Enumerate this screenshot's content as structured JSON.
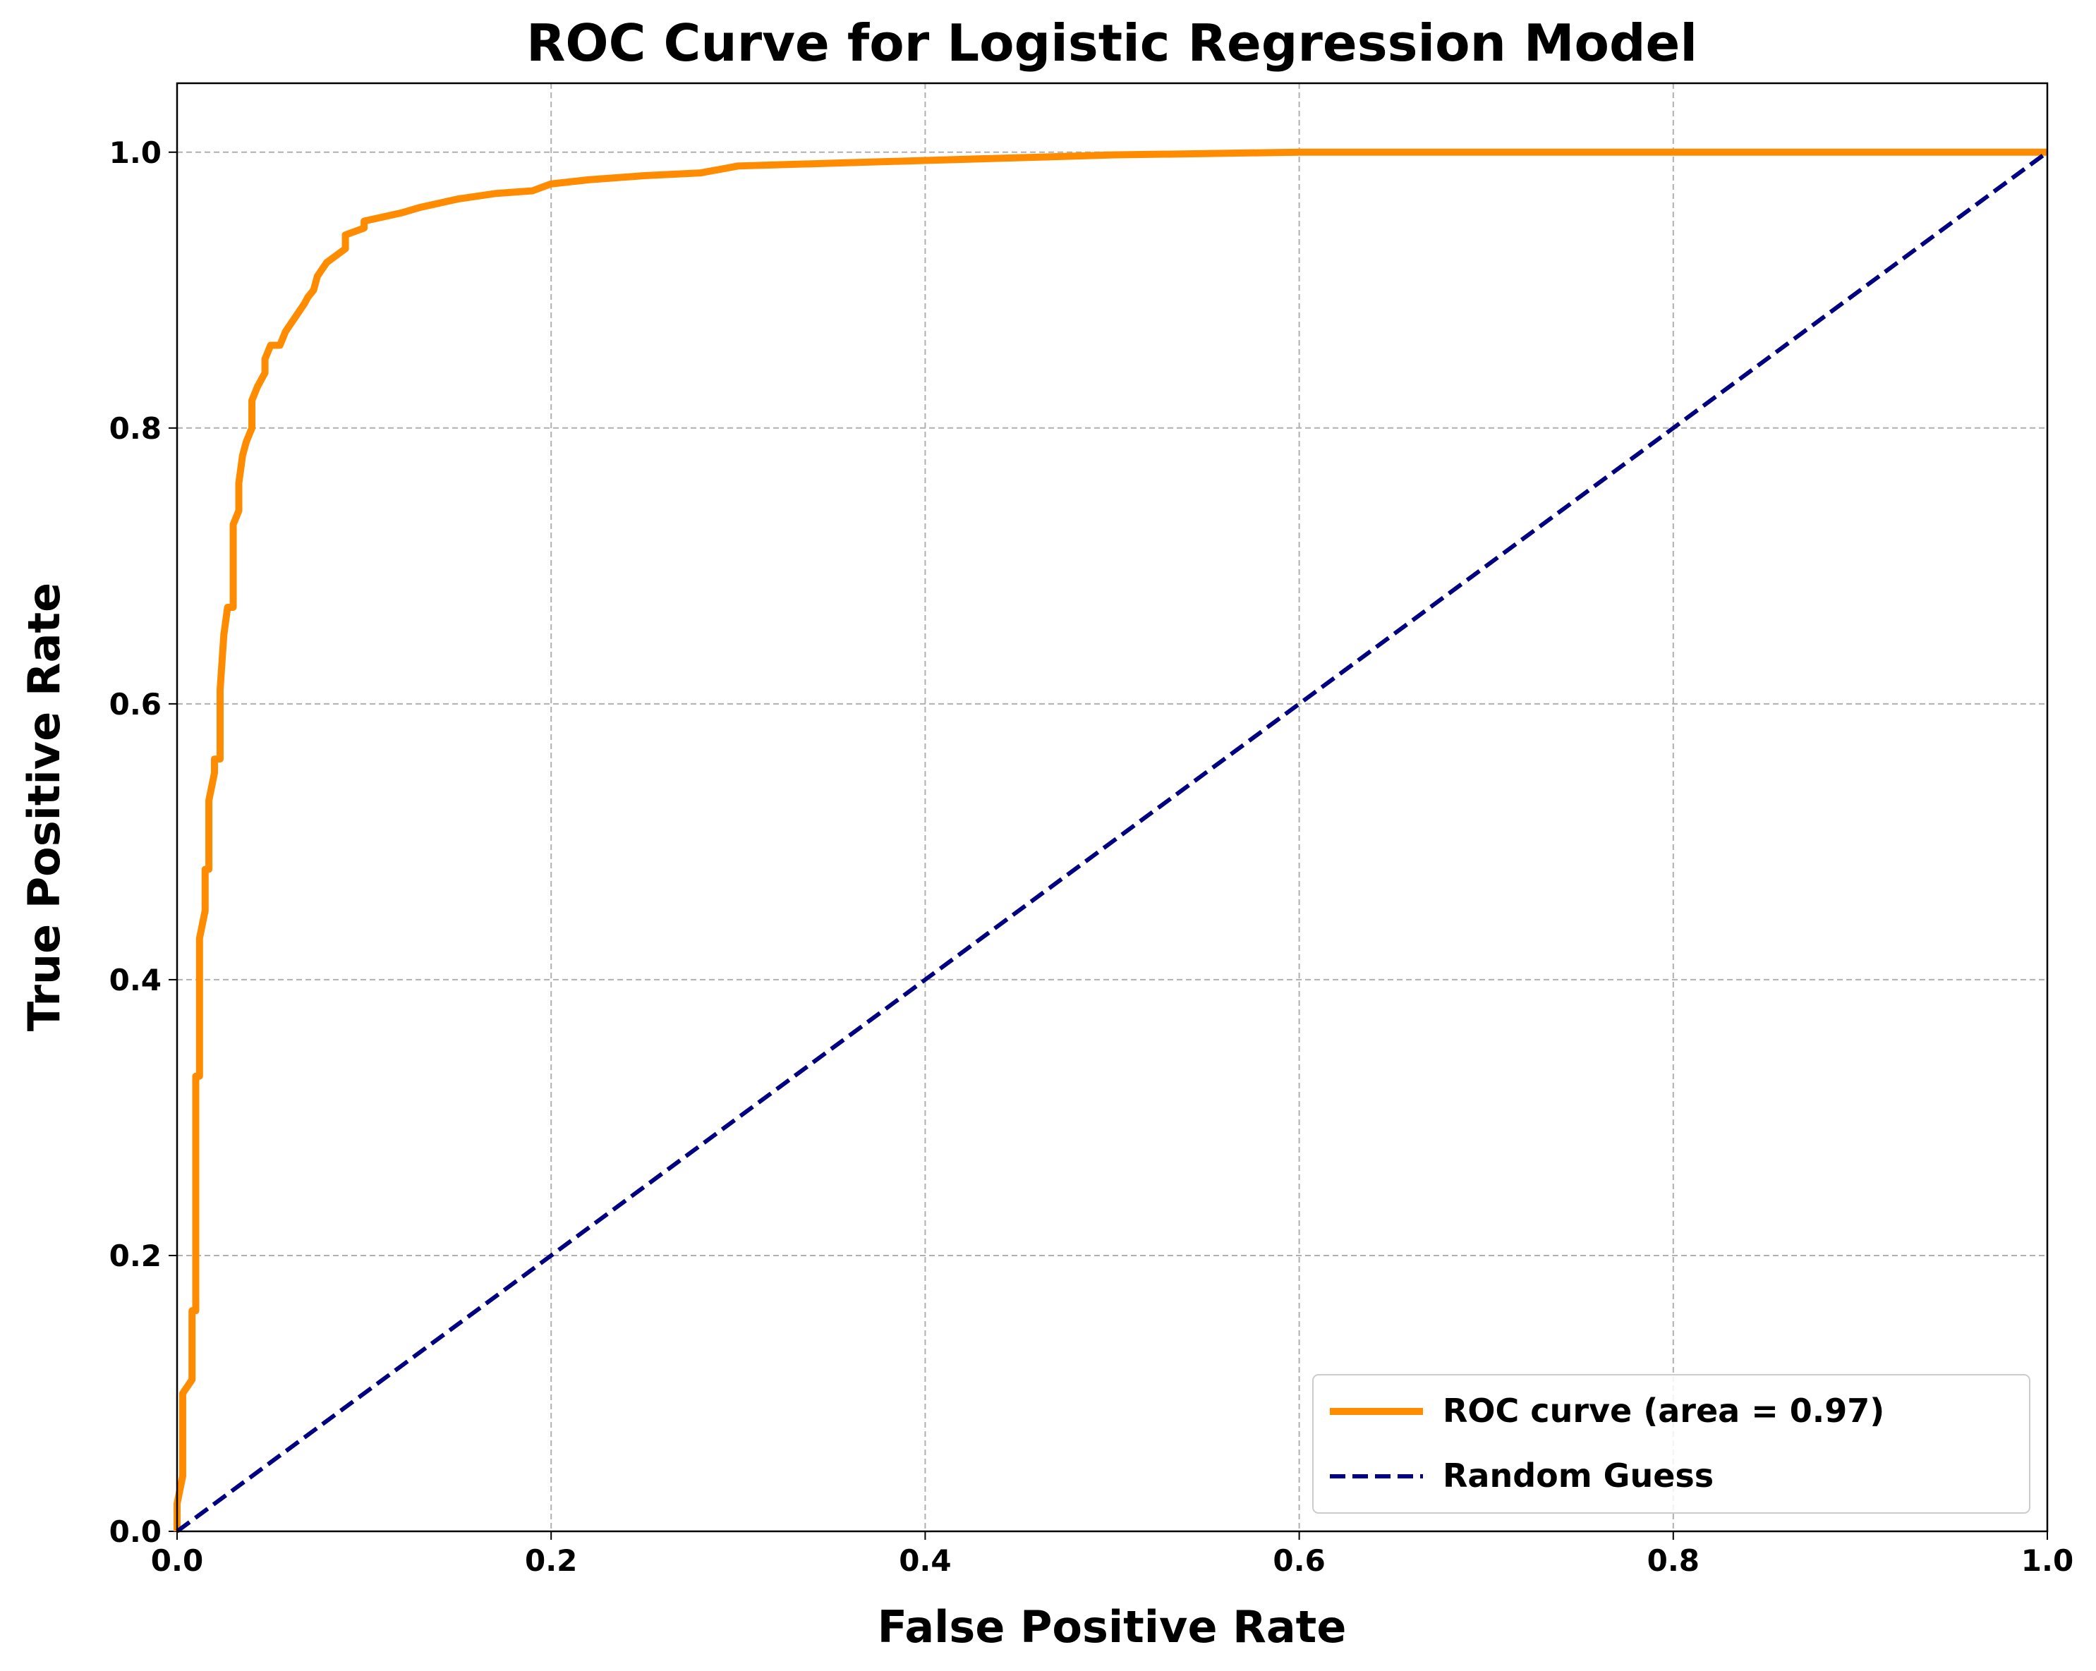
{
  "chart_data": {
    "type": "line",
    "title": "ROC Curve for Logistic Regression Model",
    "x_label": "False Positive Rate",
    "y_label": "True Positive Rate",
    "xlim": [
      0,
      1
    ],
    "ylim": [
      0,
      1.05
    ],
    "xticks": [
      {
        "value": 0,
        "label": "0.0"
      },
      {
        "value": 0.2,
        "label": "0.2"
      },
      {
        "value": 0.4,
        "label": "0.4"
      },
      {
        "value": 0.6,
        "label": "0.6"
      },
      {
        "value": 0.8,
        "label": "0.8"
      },
      {
        "value": 1,
        "label": "1.0"
      }
    ],
    "yticks": [
      {
        "value": 0,
        "label": "0.0"
      },
      {
        "value": 0.2,
        "label": "0.2"
      },
      {
        "value": 0.4,
        "label": "0.4"
      },
      {
        "value": 0.6,
        "label": "0.6"
      },
      {
        "value": 0.8,
        "label": "0.8"
      },
      {
        "value": 1,
        "label": "1.0"
      }
    ],
    "grid": true,
    "legend": "lower right",
    "series": [
      {
        "name": "ROC curve (area = 0.97)",
        "color": "#ff8c00",
        "dash": false,
        "x": [
          0,
          0,
          0.003,
          0.003,
          0.008,
          0.008,
          0.01,
          0.01,
          0.012,
          0.012,
          0.015,
          0.015,
          0.017,
          0.017,
          0.02,
          0.02,
          0.023,
          0.023,
          0.025,
          0.027,
          0.03,
          0.03,
          0.03,
          0.033,
          0.033,
          0.035,
          0.037,
          0.04,
          0.04,
          0.043,
          0.047,
          0.047,
          0.05,
          0.055,
          0.058,
          0.063,
          0.068,
          0.07,
          0.073,
          0.075,
          0.08,
          0.085,
          0.09,
          0.09,
          0.1,
          0.1,
          0.11,
          0.12,
          0.13,
          0.14,
          0.15,
          0.16,
          0.17,
          0.19,
          0.2,
          0.22,
          0.25,
          0.28,
          0.3,
          0.35,
          0.4,
          0.45,
          0.5,
          0.55,
          0.6,
          1
        ],
        "values": [
          0,
          0.02,
          0.04,
          0.1,
          0.11,
          0.16,
          0.16,
          0.33,
          0.33,
          0.43,
          0.45,
          0.48,
          0.48,
          0.53,
          0.55,
          0.56,
          0.56,
          0.61,
          0.65,
          0.67,
          0.67,
          0.69,
          0.73,
          0.74,
          0.76,
          0.78,
          0.79,
          0.8,
          0.82,
          0.83,
          0.84,
          0.85,
          0.86,
          0.86,
          0.87,
          0.88,
          0.89,
          0.895,
          0.9,
          0.91,
          0.92,
          0.925,
          0.93,
          0.94,
          0.945,
          0.95,
          0.953,
          0.956,
          0.96,
          0.963,
          0.966,
          0.968,
          0.97,
          0.972,
          0.977,
          0.98,
          0.983,
          0.985,
          0.99,
          0.992,
          0.994,
          0.996,
          0.998,
          0.999,
          1,
          1
        ]
      },
      {
        "name": "Random Guess",
        "color": "#000080",
        "dash": true,
        "x": [
          0,
          1
        ],
        "values": [
          0,
          1
        ]
      }
    ]
  }
}
